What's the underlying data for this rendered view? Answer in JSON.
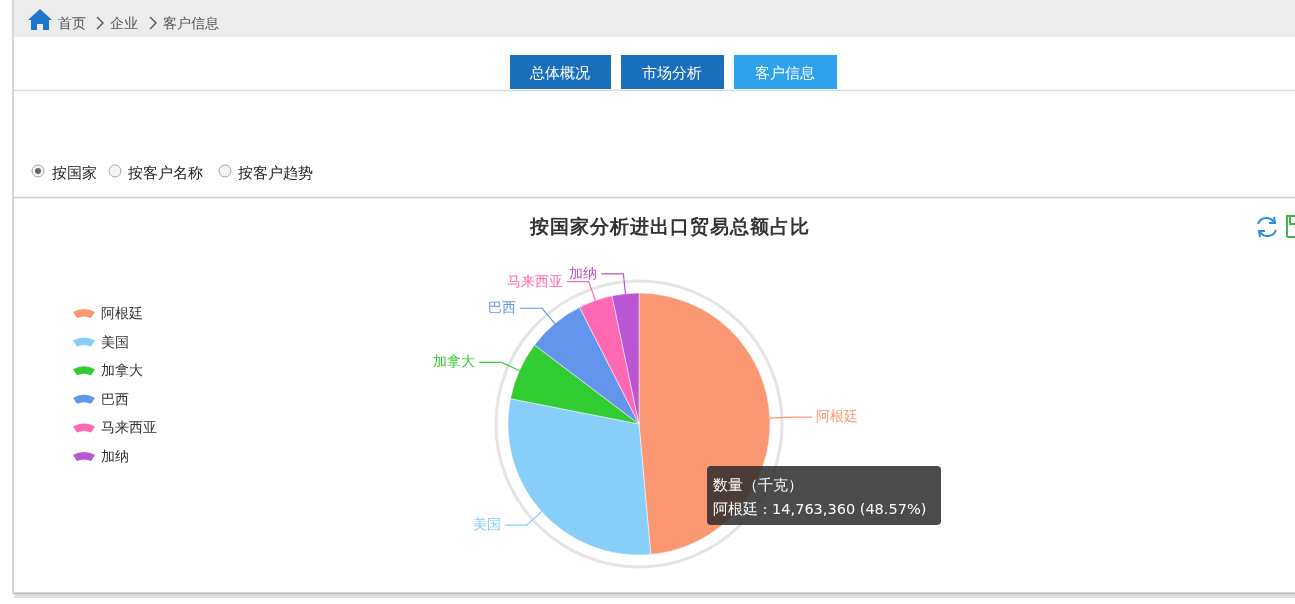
{
  "chart_data": {
    "type": "pie",
    "title": "按国家分析进出口贸易总额占比",
    "categories": [
      "阿根廷",
      "美国",
      "加拿大",
      "巴西",
      "马来西亚",
      "加纳"
    ],
    "values": [
      48.57,
      29.53,
      7.2,
      7.2,
      4.2,
      3.3
    ],
    "colors": [
      "#fc9774",
      "#87cefa",
      "#32cd32",
      "#6495ed",
      "#ff69b4",
      "#ba55d3"
    ],
    "legend": "left",
    "annotations": [
      "首页",
      "企业",
      "客户信息",
      "总体概况",
      "市场分析",
      "客户信息",
      "按国家",
      "按客户名称",
      "按客户趋势",
      "数量（千克）",
      "阿根廷 : 14,763,360 (48.57%)"
    ]
  }
}
